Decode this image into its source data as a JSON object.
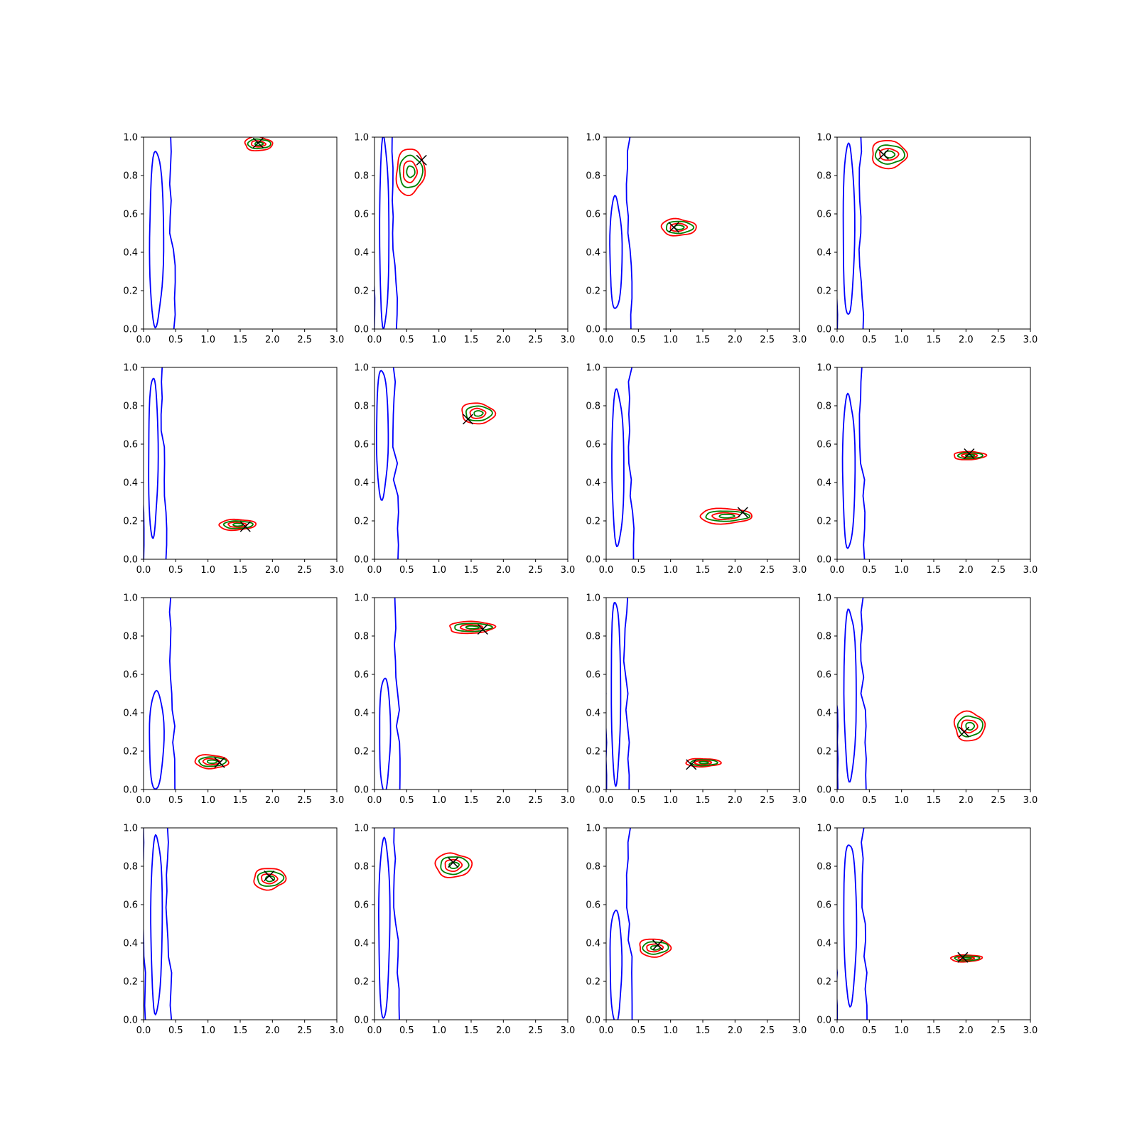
{
  "figure": {
    "rows": 4,
    "cols": 4
  },
  "colors": {
    "blue": "#0000ff",
    "green": "#008000",
    "red": "#ff0000",
    "marker": "#000000"
  },
  "chart_data": [
    {
      "type": "contour",
      "xlim": [
        0,
        3
      ],
      "ylim": [
        0,
        1
      ],
      "xticks": [
        "0.0",
        "0.5",
        "1.0",
        "1.5",
        "2.0",
        "2.5",
        "3.0"
      ],
      "yticks": [
        "0.0",
        "0.2",
        "0.4",
        "0.6",
        "0.8",
        "1.0"
      ],
      "blue": {
        "x_center": 0.2,
        "inner_bottom": 0.03,
        "inner_top": 0.92,
        "bulge": 0.45
      },
      "peak": {
        "x": 1.78,
        "y": 0.965,
        "rx": 0.22,
        "ry": 0.035
      },
      "marker": {
        "x": 1.78,
        "y": 0.97
      }
    },
    {
      "type": "contour",
      "xlim": [
        0,
        3
      ],
      "ylim": [
        0,
        1
      ],
      "xticks": [
        "0.0",
        "0.5",
        "1.0",
        "1.5",
        "2.0",
        "2.5",
        "3.0"
      ],
      "yticks": [
        "0.0",
        "0.2",
        "0.4",
        "0.6",
        "0.8",
        "1.0"
      ],
      "blue": {
        "x_center": 0.15,
        "inner_bottom": 0.02,
        "inner_top": 0.98,
        "bulge": 0.3
      },
      "peak": {
        "x": 0.55,
        "y": 0.82,
        "rx": 0.22,
        "ry": 0.12
      },
      "marker": {
        "x": 0.73,
        "y": 0.88
      }
    },
    {
      "type": "contour",
      "xlim": [
        0,
        3
      ],
      "ylim": [
        0,
        1
      ],
      "xticks": [
        "0.0",
        "0.5",
        "1.0",
        "1.5",
        "2.0",
        "2.5",
        "3.0"
      ],
      "yticks": [
        "0.0",
        "0.2",
        "0.4",
        "0.6",
        "0.8",
        "1.0"
      ],
      "blue": {
        "x_center": 0.15,
        "inner_bottom": 0.1,
        "inner_top": 0.69,
        "bulge": 0.38
      },
      "peak": {
        "x": 1.12,
        "y": 0.53,
        "rx": 0.26,
        "ry": 0.045
      },
      "marker": {
        "x": 1.05,
        "y": 0.53
      }
    },
    {
      "type": "contour",
      "xlim": [
        0,
        3
      ],
      "ylim": [
        0,
        1
      ],
      "xticks": [
        "0.0",
        "0.5",
        "1.0",
        "1.5",
        "2.0",
        "2.5",
        "3.0"
      ],
      "yticks": [
        "0.0",
        "0.2",
        "0.4",
        "0.6",
        "0.8",
        "1.0"
      ],
      "blue": {
        "x_center": 0.18,
        "inner_bottom": 0.06,
        "inner_top": 0.98,
        "bulge": 0.35
      },
      "peak": {
        "x": 0.8,
        "y": 0.91,
        "rx": 0.28,
        "ry": 0.07
      },
      "marker": {
        "x": 0.72,
        "y": 0.91
      }
    },
    {
      "type": "contour",
      "xlim": [
        0,
        3
      ],
      "ylim": [
        0,
        1
      ],
      "xticks": [
        "0.0",
        "0.5",
        "1.0",
        "1.5",
        "2.0",
        "2.5",
        "3.0"
      ],
      "yticks": [
        "0.0",
        "0.2",
        "0.4",
        "0.6",
        "0.8",
        "1.0"
      ],
      "blue": {
        "x_center": 0.15,
        "inner_bottom": 0.12,
        "inner_top": 0.95,
        "bulge": 0.3
      },
      "peak": {
        "x": 1.45,
        "y": 0.18,
        "rx": 0.28,
        "ry": 0.028
      },
      "marker": {
        "x": 1.58,
        "y": 0.17
      }
    },
    {
      "type": "contour",
      "xlim": [
        0,
        3
      ],
      "ylim": [
        0,
        1
      ],
      "xticks": [
        "0.0",
        "0.5",
        "1.0",
        "1.5",
        "2.0",
        "2.5",
        "3.0"
      ],
      "yticks": [
        "0.0",
        "0.2",
        "0.4",
        "0.6",
        "0.8",
        "1.0"
      ],
      "blue": {
        "x_center": 0.12,
        "inner_bottom": 0.33,
        "inner_top": 0.98,
        "bulge": 0.38
      },
      "peak": {
        "x": 1.6,
        "y": 0.76,
        "rx": 0.25,
        "ry": 0.055
      },
      "marker": {
        "x": 1.45,
        "y": 0.73
      }
    },
    {
      "type": "contour",
      "xlim": [
        0,
        3
      ],
      "ylim": [
        0,
        1
      ],
      "xticks": [
        "0.0",
        "0.5",
        "1.0",
        "1.5",
        "2.0",
        "2.5",
        "3.0"
      ],
      "yticks": [
        "0.0",
        "0.2",
        "0.4",
        "0.6",
        "0.8",
        "1.0"
      ],
      "blue": {
        "x_center": 0.18,
        "inner_bottom": 0.08,
        "inner_top": 0.88,
        "bulge": 0.38
      },
      "peak": {
        "x": 1.85,
        "y": 0.225,
        "rx": 0.42,
        "ry": 0.038
      },
      "marker": {
        "x": 2.12,
        "y": 0.245
      }
    },
    {
      "type": "contour",
      "xlim": [
        0,
        3
      ],
      "ylim": [
        0,
        1
      ],
      "xticks": [
        "0.0",
        "0.5",
        "1.0",
        "1.5",
        "2.0",
        "2.5",
        "3.0"
      ],
      "yticks": [
        "0.0",
        "0.2",
        "0.4",
        "0.6",
        "0.8",
        "1.0"
      ],
      "blue": {
        "x_center": 0.18,
        "inner_bottom": 0.05,
        "inner_top": 0.87,
        "bulge": 0.38
      },
      "peak": {
        "x": 2.05,
        "y": 0.54,
        "rx": 0.24,
        "ry": 0.022
      },
      "marker": {
        "x": 2.05,
        "y": 0.55
      }
    },
    {
      "type": "contour",
      "xlim": [
        0,
        3
      ],
      "ylim": [
        0,
        1
      ],
      "xticks": [
        "0.0",
        "0.5",
        "1.0",
        "1.5",
        "2.0",
        "2.5",
        "3.0"
      ],
      "yticks": [
        "0.0",
        "0.2",
        "0.4",
        "0.6",
        "0.8",
        "1.0"
      ],
      "blue": {
        "x_center": 0.2,
        "inner_bottom": 0.0,
        "inner_top": 0.52,
        "bulge": 0.45
      },
      "peak": {
        "x": 1.05,
        "y": 0.145,
        "rx": 0.26,
        "ry": 0.035
      },
      "marker": {
        "x": 1.18,
        "y": 0.14
      }
    },
    {
      "type": "contour",
      "xlim": [
        0,
        3
      ],
      "ylim": [
        0,
        1
      ],
      "xticks": [
        "0.0",
        "0.5",
        "1.0",
        "1.5",
        "2.0",
        "2.5",
        "3.0"
      ],
      "yticks": [
        "0.0",
        "0.2",
        "0.4",
        "0.6",
        "0.8",
        "1.0"
      ],
      "blue": {
        "x_center": 0.16,
        "inner_bottom": 0.0,
        "inner_top": 0.58,
        "bulge": 0.35
      },
      "peak": {
        "x": 1.5,
        "y": 0.845,
        "rx": 0.36,
        "ry": 0.03
      },
      "marker": {
        "x": 1.68,
        "y": 0.835
      }
    },
    {
      "type": "contour",
      "xlim": [
        0,
        3
      ],
      "ylim": [
        0,
        1
      ],
      "xticks": [
        "0.0",
        "0.5",
        "1.0",
        "1.5",
        "2.0",
        "2.5",
        "3.0"
      ],
      "yticks": [
        "0.0",
        "0.2",
        "0.4",
        "0.6",
        "0.8",
        "1.0"
      ],
      "blue": {
        "x_center": 0.15,
        "inner_bottom": 0.05,
        "inner_top": 0.98,
        "bulge": 0.3
      },
      "peak": {
        "x": 1.5,
        "y": 0.14,
        "rx": 0.26,
        "ry": 0.022
      },
      "marker": {
        "x": 1.32,
        "y": 0.13
      }
    },
    {
      "type": "contour",
      "xlim": [
        0,
        3
      ],
      "ylim": [
        0,
        1
      ],
      "xticks": [
        "0.0",
        "0.5",
        "1.0",
        "1.5",
        "2.0",
        "2.5",
        "3.0"
      ],
      "yticks": [
        "0.0",
        "0.2",
        "0.4",
        "0.6",
        "0.8",
        "1.0"
      ],
      "blue": {
        "x_center": 0.2,
        "inner_bottom": 0.05,
        "inner_top": 0.95,
        "bulge": 0.38
      },
      "peak": {
        "x": 2.05,
        "y": 0.33,
        "rx": 0.24,
        "ry": 0.075
      },
      "marker": {
        "x": 1.97,
        "y": 0.3
      }
    },
    {
      "type": "contour",
      "xlim": [
        0,
        3
      ],
      "ylim": [
        0,
        1
      ],
      "xticks": [
        "0.0",
        "0.5",
        "1.0",
        "1.5",
        "2.0",
        "2.5",
        "3.0"
      ],
      "yticks": [
        "0.0",
        "0.2",
        "0.4",
        "0.6",
        "0.8",
        "1.0"
      ],
      "blue": {
        "x_center": 0.2,
        "inner_bottom": 0.03,
        "inner_top": 0.98,
        "bulge": 0.35
      },
      "peak": {
        "x": 1.95,
        "y": 0.735,
        "rx": 0.25,
        "ry": 0.055
      },
      "marker": {
        "x": 1.95,
        "y": 0.75
      }
    },
    {
      "type": "contour",
      "xlim": [
        0,
        3
      ],
      "ylim": [
        0,
        1
      ],
      "xticks": [
        "0.0",
        "0.5",
        "1.0",
        "1.5",
        "2.0",
        "2.5",
        "3.0"
      ],
      "yticks": [
        "0.0",
        "0.2",
        "0.4",
        "0.6",
        "0.8",
        "1.0"
      ],
      "blue": {
        "x_center": 0.15,
        "inner_bottom": 0.02,
        "inner_top": 0.95,
        "bulge": 0.35
      },
      "peak": {
        "x": 1.22,
        "y": 0.805,
        "rx": 0.27,
        "ry": 0.065
      },
      "marker": {
        "x": 1.22,
        "y": 0.82
      }
    },
    {
      "type": "contour",
      "xlim": [
        0,
        3
      ],
      "ylim": [
        0,
        1
      ],
      "xticks": [
        "0.0",
        "0.5",
        "1.0",
        "1.5",
        "2.0",
        "2.5",
        "3.0"
      ],
      "yticks": [
        "0.0",
        "0.2",
        "0.4",
        "0.6",
        "0.8",
        "1.0"
      ],
      "blue": {
        "x_center": 0.15,
        "inner_bottom": 0.0,
        "inner_top": 0.57,
        "bulge": 0.38
      },
      "peak": {
        "x": 0.75,
        "y": 0.375,
        "rx": 0.25,
        "ry": 0.045
      },
      "marker": {
        "x": 0.8,
        "y": 0.39
      }
    },
    {
      "type": "contour",
      "xlim": [
        0,
        3
      ],
      "ylim": [
        0,
        1
      ],
      "xticks": [
        "0.0",
        "0.5",
        "1.0",
        "1.5",
        "2.0",
        "2.5",
        "3.0"
      ],
      "yticks": [
        "0.0",
        "0.2",
        "0.4",
        "0.6",
        "0.8",
        "1.0"
      ],
      "blue": {
        "x_center": 0.2,
        "inner_bottom": 0.09,
        "inner_top": 0.93,
        "bulge": 0.4
      },
      "peak": {
        "x": 2.0,
        "y": 0.32,
        "rx": 0.24,
        "ry": 0.018
      },
      "marker": {
        "x": 1.95,
        "y": 0.325
      }
    }
  ]
}
